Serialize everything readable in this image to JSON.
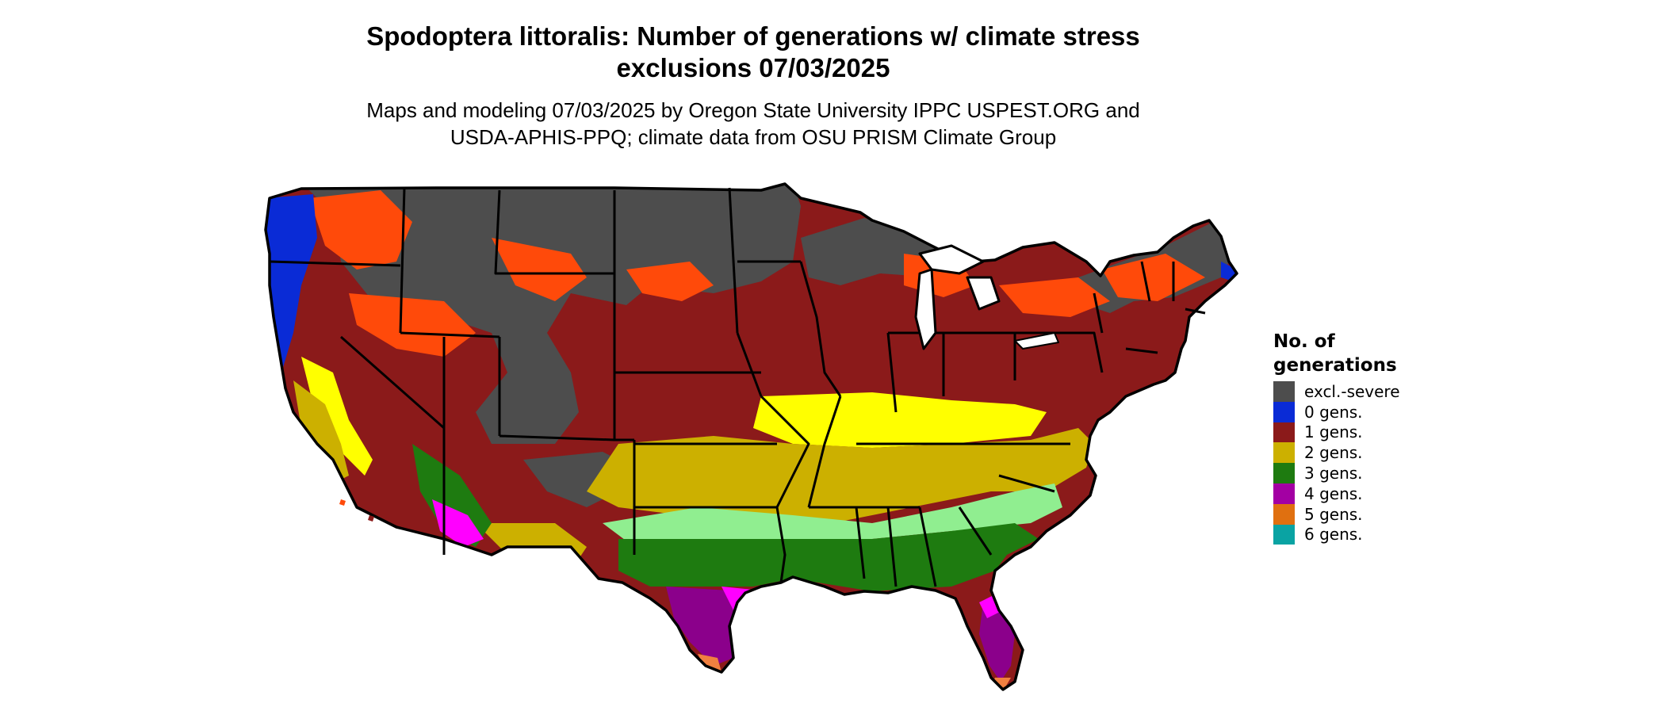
{
  "title_line1": "Spodoptera littoralis: Number of generations w/ climate stress",
  "title_line2": "exclusions 07/03/2025",
  "subtitle_line1": "Maps and modeling 07/03/2025 by Oregon State University IPPC USPEST.ORG and",
  "subtitle_line2": "USDA-APHIS-PPQ; climate data from OSU PRISM Climate Group",
  "legend": {
    "title": "No. of generations",
    "items": [
      {
        "label": "excl.-severe",
        "color": "#4d4d4d"
      },
      {
        "label": "0 gens.",
        "color": "#0a2bd6"
      },
      {
        "label": "1 gens.",
        "color": "#8b1a1a"
      },
      {
        "label": "2 gens.",
        "color": "#ccb000"
      },
      {
        "label": "3 gens.",
        "color": "#1e7b10"
      },
      {
        "label": "4 gens.",
        "color": "#a300a3"
      },
      {
        "label": "5 gens.",
        "color": "#e07010"
      },
      {
        "label": "6 gens.",
        "color": "#0aa3a3"
      }
    ]
  },
  "map_colors": {
    "excluded": "#4d4d4d",
    "zero": "#0a2bd6",
    "one": "#8b1a1a",
    "one_light": "#ff4a0a",
    "two": "#ccb000",
    "two_light": "#ffff00",
    "three": "#1e7b10",
    "three_light": "#90ee90",
    "four": "#8b008b",
    "four_light": "#ff00ff",
    "five": "#f08040",
    "border": "#000000"
  }
}
